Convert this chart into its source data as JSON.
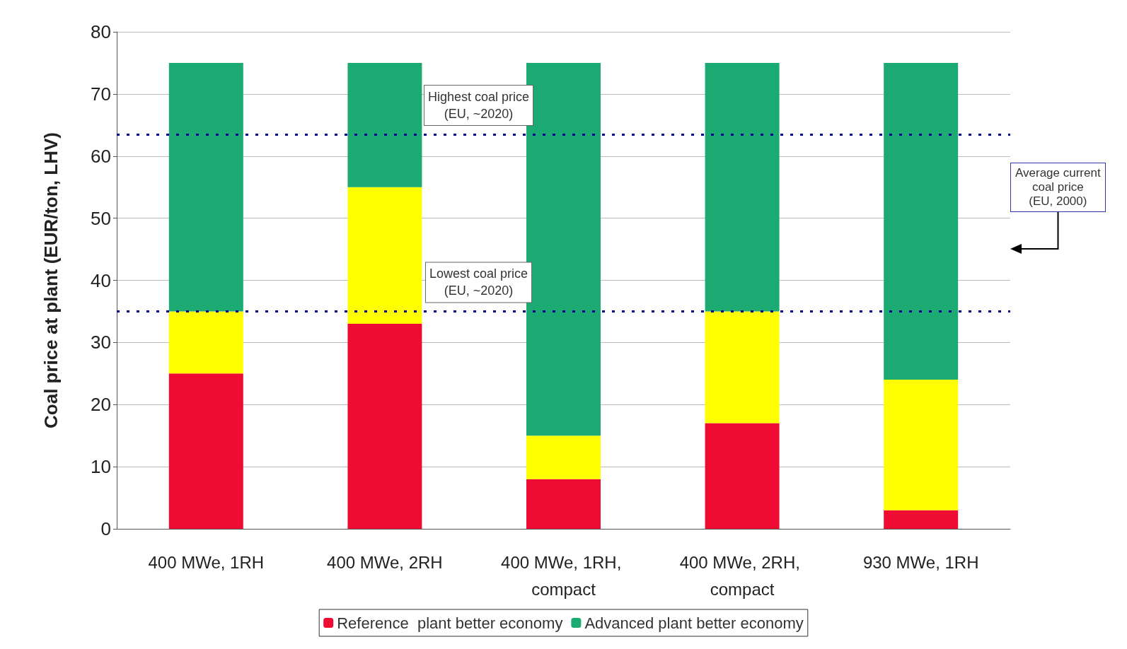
{
  "chart_data": {
    "type": "bar",
    "stacked": true,
    "ylabel": "Coal price at plant (EUR/ton, LHV)",
    "categories": [
      "400 MWe, 1RH",
      "400 MWe, 2RH",
      "400 MWe, 1RH, compact",
      "400 MWe, 2RH, compact",
      "930 MWe, 1RH"
    ],
    "series": [
      {
        "name": "Reference  plant better economy",
        "color": "#ee0c33",
        "values": [
          25,
          33,
          8,
          17,
          3
        ]
      },
      {
        "color": "#ffff00",
        "values": [
          10,
          22,
          7,
          18,
          21
        ]
      },
      {
        "name": "Advanced plant better economy",
        "color": "#1aaa72",
        "values": [
          40,
          20,
          60,
          40,
          51
        ]
      }
    ],
    "ylim": [
      0,
      80
    ],
    "yticks": [
      0,
      10,
      20,
      30,
      40,
      50,
      60,
      70,
      80
    ],
    "grid": "y",
    "legend": "bottom",
    "ref_lines": [
      {
        "axis": "y",
        "value": 63.5,
        "label": "Highest coal price\n(EU, ~2020)",
        "color": "#000099",
        "line_style": "dotted"
      },
      {
        "axis": "y",
        "value": 35,
        "label": "Lowest coal price\n(EU, ~2020)",
        "color": "#000099",
        "line_style": "dotted"
      }
    ],
    "annotations": [
      "Average current\ncoal price\n(EU, 2000)"
    ]
  }
}
